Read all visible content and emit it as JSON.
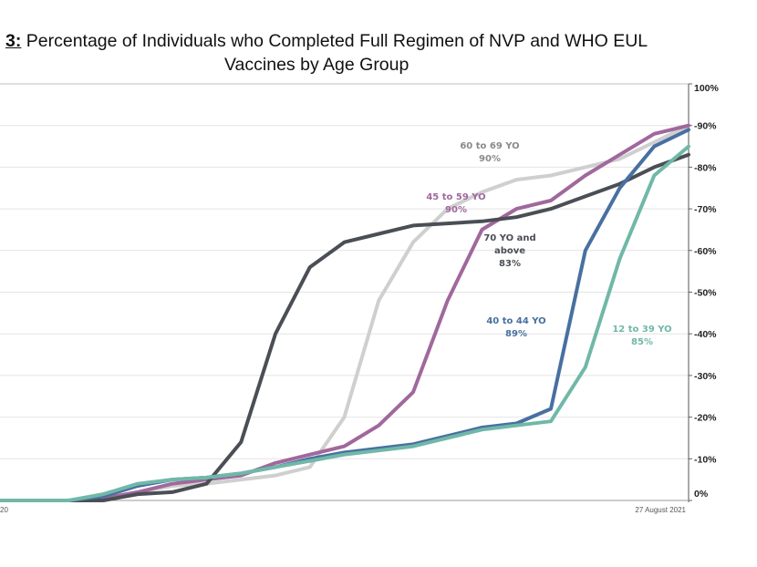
{
  "title": {
    "prefix": "3:",
    "line1": " Percentage of Individuals who Completed Full Regimen of NVP and WHO EUL",
    "line2": "Vaccines by Age Group"
  },
  "chart_data": {
    "type": "line",
    "title": "3: Percentage of Individuals who Completed Full Regimen of NVP and WHO EUL Vaccines by Age Group",
    "xlabel": "",
    "ylabel": "",
    "ylim": [
      0,
      100
    ],
    "grid": true,
    "y_ticks": [
      "0%",
      "10%",
      "20%",
      "30%",
      "40%",
      "50%",
      "60%",
      "70%",
      "80%",
      "90%",
      "100%"
    ],
    "x_ticks": [
      "20",
      "27 August 2021"
    ],
    "x": [
      0,
      5,
      10,
      15,
      20,
      25,
      30,
      35,
      40,
      45,
      50,
      55,
      60,
      65,
      70,
      75,
      80,
      85,
      90,
      95,
      100
    ],
    "series": [
      {
        "name": "60 to 69 YO",
        "label_value": "90%",
        "color": "#cfcfcf",
        "values": [
          0,
          0,
          0,
          0.5,
          2,
          3.5,
          4,
          5,
          6,
          8,
          20,
          48,
          62,
          70,
          74,
          77,
          78,
          80,
          82,
          86,
          90
        ]
      },
      {
        "name": "45 to 59 YO",
        "label_value": "90%",
        "color": "#a0689c",
        "values": [
          0,
          0,
          0,
          0.5,
          2,
          4,
          5,
          6,
          9,
          11,
          13,
          18,
          26,
          48,
          65,
          70,
          72,
          78,
          83,
          88,
          90
        ]
      },
      {
        "name": "70 YO and above",
        "label_value": "83%",
        "color": "#4a4e55",
        "values": [
          0,
          0,
          0,
          0,
          1.5,
          2,
          4,
          14,
          40,
          56,
          62,
          64,
          66,
          66.5,
          67,
          68,
          70,
          73,
          76,
          80,
          83
        ]
      },
      {
        "name": "40 to 44 YO",
        "label_value": "89%",
        "color": "#4870a0",
        "values": [
          0,
          0,
          0,
          1,
          3.5,
          5,
          5.5,
          6.5,
          8,
          10,
          11.5,
          12.5,
          13.5,
          15.5,
          17.5,
          18.5,
          22,
          60,
          75,
          85,
          89
        ]
      },
      {
        "name": "12 to 39 YO",
        "label_value": "85%",
        "color": "#70b8a8",
        "values": [
          0,
          0,
          0,
          1.5,
          4,
          5,
          5.5,
          6.5,
          8,
          9.5,
          11,
          12,
          13,
          15,
          17,
          18,
          19,
          32,
          58,
          78,
          85
        ]
      }
    ]
  }
}
